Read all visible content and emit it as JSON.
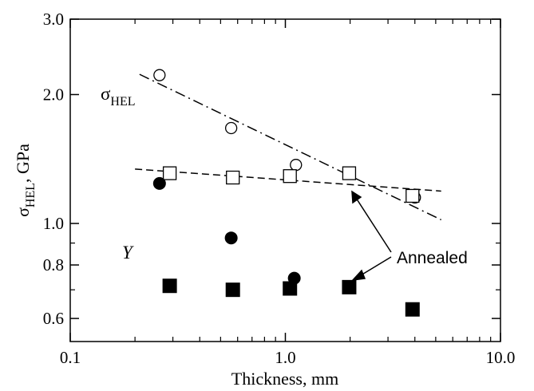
{
  "chart_data": {
    "type": "scatter",
    "xscale": "log",
    "yscale": "log",
    "xlim": [
      0.1,
      10.0
    ],
    "ylim": [
      0.53,
      3.0
    ],
    "xticks": [
      {
        "value": 0.1,
        "label": "0.1"
      },
      {
        "value": 1.0,
        "label": "1.0"
      },
      {
        "value": 10.0,
        "label": "10.0"
      }
    ],
    "yticks": [
      {
        "value": 0.6,
        "label": "0.6"
      },
      {
        "value": 0.8,
        "label": "0.8"
      },
      {
        "value": 1.0,
        "label": "1.0"
      },
      {
        "value": 2.0,
        "label": "2.0"
      },
      {
        "value": 3.0,
        "label": "3.0"
      }
    ],
    "xlabel": "Thickness, mm",
    "ylabel": {
      "main": "σ",
      "sub": "HEL",
      "rest": ", GPa"
    },
    "grid": false,
    "labels": {
      "sigma": {
        "main": "σ",
        "sub": "HEL"
      },
      "y": "Y",
      "annealed": "Annealed"
    },
    "series": [
      {
        "marker": "open-circle",
        "points": [
          [
            0.26,
            2.22
          ],
          [
            0.56,
            1.67
          ],
          [
            1.12,
            1.37
          ],
          [
            4.0,
            1.15
          ]
        ]
      },
      {
        "marker": "open-square",
        "points": [
          [
            0.29,
            1.31
          ],
          [
            0.57,
            1.28
          ],
          [
            1.05,
            1.29
          ],
          [
            1.98,
            1.31
          ],
          [
            3.9,
            1.16
          ]
        ]
      },
      {
        "marker": "filled-circle",
        "points": [
          [
            0.26,
            1.24
          ],
          [
            0.56,
            0.925
          ],
          [
            1.1,
            0.745
          ]
        ]
      },
      {
        "marker": "filled-square",
        "points": [
          [
            0.29,
            0.715
          ],
          [
            0.57,
            0.7
          ],
          [
            1.05,
            0.705
          ],
          [
            1.98,
            0.71
          ],
          [
            3.9,
            0.63
          ]
        ]
      }
    ],
    "trendlines": [
      {
        "style": "dash-dot",
        "from": [
          0.21,
          2.23
        ],
        "to": [
          5.3,
          1.02
        ]
      },
      {
        "style": "dashed",
        "from": [
          0.2,
          1.34
        ],
        "to": [
          5.3,
          1.19
        ]
      }
    ]
  }
}
